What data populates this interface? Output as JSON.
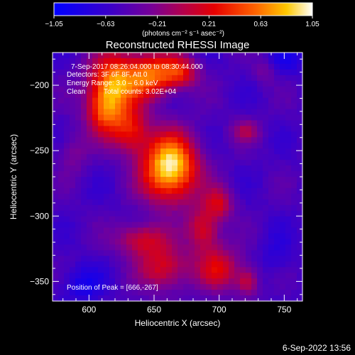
{
  "chart_data": {
    "type": "heatmap",
    "title": "Reconstructed RHESSI Image",
    "xlabel": "Heliocentric X (arcsec)",
    "ylabel": "Heliocentric Y (arcsec)",
    "xlim": [
      572,
      764
    ],
    "ylim": [
      -365,
      -175
    ],
    "x_ticks": [
      600,
      650,
      700,
      750
    ],
    "y_ticks": [
      -200,
      -250,
      -300,
      -350
    ],
    "x_tick_labels": [
      "600",
      "650",
      "700",
      "750"
    ],
    "y_tick_labels": [
      "−200",
      "−250",
      "−300",
      "−350"
    ],
    "colorbar": {
      "min": -1.05,
      "max": 1.05,
      "ticks": [
        -1.05,
        -0.63,
        -0.21,
        0.21,
        0.63,
        1.05
      ],
      "tick_labels": [
        "−1.05",
        "−0.63",
        "−0.21",
        "0.21",
        "0.63",
        "1.05"
      ],
      "unit_label": "(photons cm⁻² s⁻¹ asec⁻²)"
    },
    "annotations": {
      "time_range": "7-Sep-2017 08:26:04.000 to 08:30:44.000",
      "detectors": "Detectors: 3F 6F 8F, Att 0",
      "energy_range": "Energy Range: 3.0 – 6.0 keV",
      "algorithm": "Clean",
      "total_counts": "Total counts: 3.02E+04",
      "peak": "Position of Peak = [666,-267]"
    },
    "peak_position": [
      666,
      -267
    ],
    "sources": [
      {
        "x": 662,
        "y": -263,
        "sx": 15,
        "sy": 18,
        "amp": 1.0
      },
      {
        "x": 620,
        "y": -197,
        "sx": 14,
        "sy": 16,
        "amp": 0.72
      },
      {
        "x": 648,
        "y": -192,
        "sx": 12,
        "sy": 12,
        "amp": 0.62
      },
      {
        "x": 670,
        "y": -190,
        "sx": 10,
        "sy": 9,
        "amp": 0.5
      },
      {
        "x": 612,
        "y": -220,
        "sx": 10,
        "sy": 14,
        "amp": 0.55
      },
      {
        "x": 632,
        "y": -235,
        "sx": 10,
        "sy": 12,
        "amp": 0.5
      },
      {
        "x": 688,
        "y": -310,
        "sx": 9,
        "sy": 12,
        "amp": 0.45
      },
      {
        "x": 700,
        "y": -290,
        "sx": 8,
        "sy": 9,
        "amp": 0.38
      },
      {
        "x": 640,
        "y": -318,
        "sx": 14,
        "sy": 9,
        "amp": 0.42
      },
      {
        "x": 658,
        "y": -340,
        "sx": 14,
        "sy": 12,
        "amp": 0.45
      },
      {
        "x": 700,
        "y": -340,
        "sx": 12,
        "sy": 12,
        "amp": 0.44
      },
      {
        "x": 722,
        "y": -350,
        "sx": 6,
        "sy": 8,
        "amp": 0.38
      },
      {
        "x": 720,
        "y": -235,
        "sx": 8,
        "sy": 6,
        "amp": 0.28
      },
      {
        "x": 588,
        "y": -252,
        "sx": 8,
        "sy": 12,
        "amp": 0.18
      },
      {
        "x": 735,
        "y": -190,
        "sx": 6,
        "sy": 6,
        "amp": 0.15
      }
    ],
    "background_level": -0.52
  },
  "footer": {
    "timestamp": "6-Sep-2022 13:56"
  }
}
